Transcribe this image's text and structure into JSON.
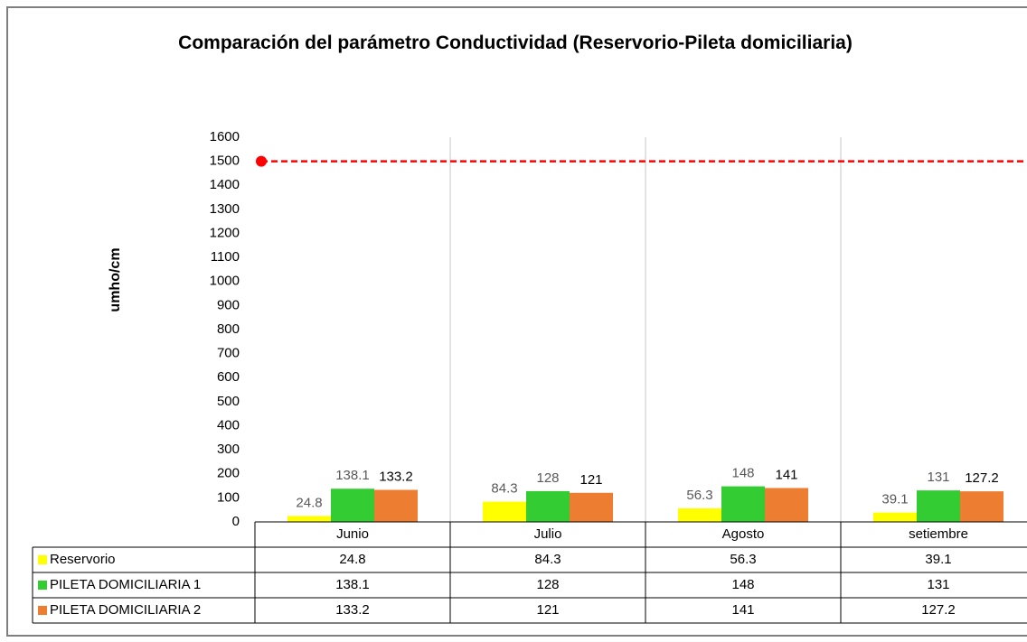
{
  "chart_data": {
    "type": "bar",
    "title": "Comparación  del parámetro Conductividad  (Reservorio-Pileta domiciliaria)",
    "y_label": "umho/cm",
    "categories": [
      "Junio",
      "Julio",
      "Agosto",
      "setiembre"
    ],
    "series": [
      {
        "name": "Reservorio",
        "color": "#ffff00",
        "label_color": "#595959",
        "values": [
          24.8,
          84.3,
          56.3,
          39.1
        ]
      },
      {
        "name": "PILETA DOMICILIARIA 1",
        "color": "#33cc33",
        "label_color": "#595959",
        "values": [
          138.1,
          128,
          148,
          131
        ]
      },
      {
        "name": "PILETA DOMICILIARIA 2",
        "color": "#ed7d31",
        "label_color": "#000000",
        "values": [
          133.2,
          121,
          141,
          127.2
        ]
      }
    ],
    "reference_line": {
      "value": 1500,
      "color": "#ff0000"
    },
    "ylim": [
      0,
      1600
    ],
    "yticks": [
      0,
      100,
      200,
      300,
      400,
      500,
      600,
      700,
      800,
      900,
      1000,
      1100,
      1200,
      1300,
      1400,
      1500,
      1600
    ],
    "data_table": true
  }
}
